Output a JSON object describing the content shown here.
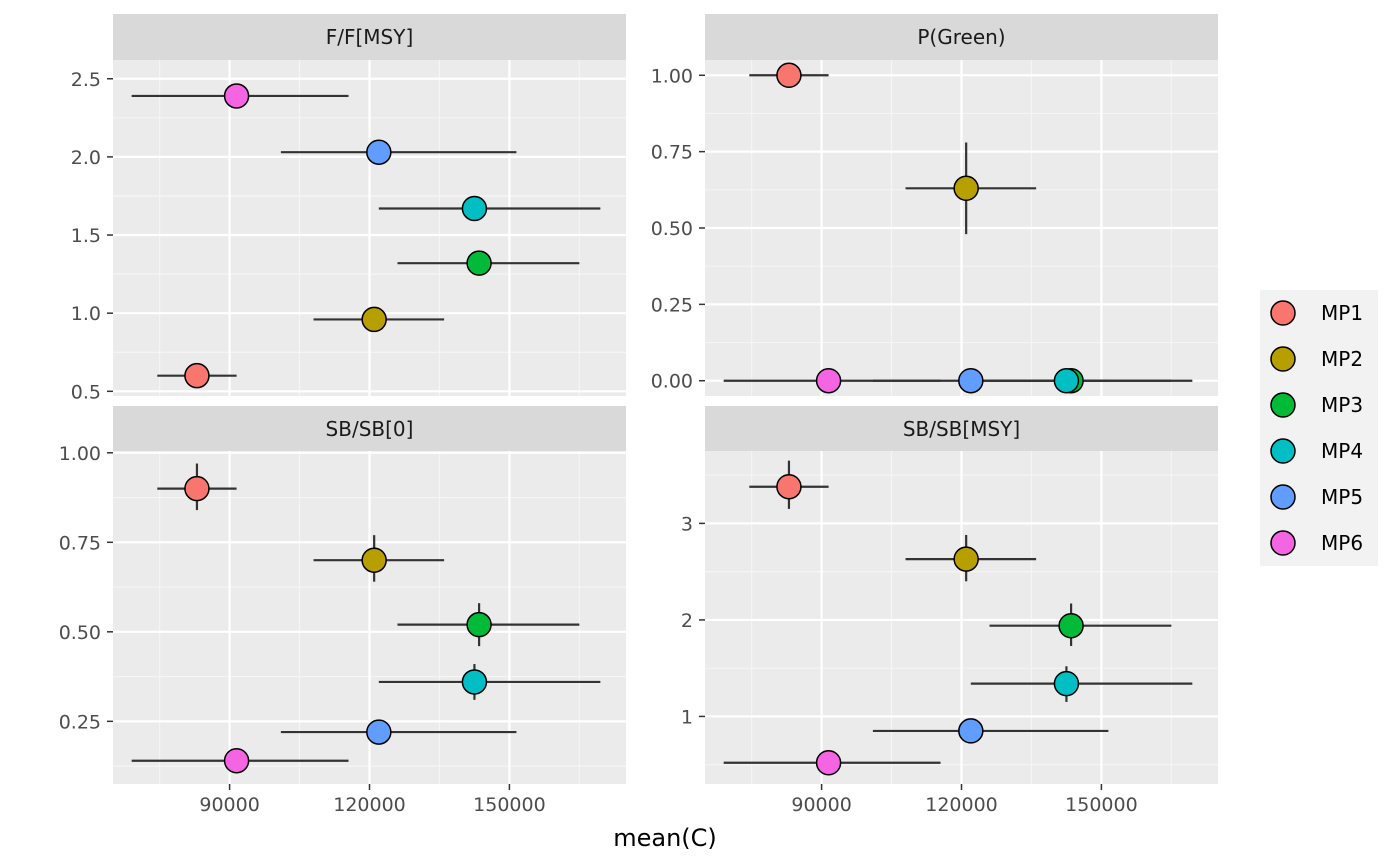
{
  "chart_data": {
    "type": "scatter",
    "layout": "facet-grid-2x2",
    "xlabel": "mean(C)",
    "ylabel": "",
    "x_ticks": [
      90000,
      120000,
      150000
    ],
    "xlim": [
      65000,
      175000
    ],
    "legend": {
      "placement": "right",
      "entries": [
        {
          "name": "MP1",
          "color": "#F8766D"
        },
        {
          "name": "MP2",
          "color": "#B79F00"
        },
        {
          "name": "MP3",
          "color": "#00BA38"
        },
        {
          "name": "MP4",
          "color": "#00BFC4"
        },
        {
          "name": "MP5",
          "color": "#619CFF"
        },
        {
          "name": "MP6",
          "color": "#F564E3"
        }
      ]
    },
    "panels": [
      {
        "title": "F/F[MSY]",
        "ylim": [
          0.47,
          2.62
        ],
        "y_ticks": [
          "0.5",
          "1.0",
          "1.5",
          "2.0",
          "2.5"
        ],
        "y_tick_values": [
          0.5,
          1.0,
          1.5,
          2.0,
          2.5
        ],
        "points": [
          {
            "mp": "MP1",
            "x": 83000,
            "y": 0.6,
            "xmin": 74500,
            "xmax": 91500,
            "ymin": 0.6,
            "ymax": 0.6
          },
          {
            "mp": "MP2",
            "x": 121000,
            "y": 0.96,
            "xmin": 108000,
            "xmax": 136000,
            "ymin": 0.96,
            "ymax": 0.96
          },
          {
            "mp": "MP3",
            "x": 143500,
            "y": 1.32,
            "xmin": 126000,
            "xmax": 165000,
            "ymin": 1.32,
            "ymax": 1.32
          },
          {
            "mp": "MP4",
            "x": 142500,
            "y": 1.67,
            "xmin": 122000,
            "xmax": 169500,
            "ymin": 1.67,
            "ymax": 1.67
          },
          {
            "mp": "MP5",
            "x": 122000,
            "y": 2.03,
            "xmin": 101000,
            "xmax": 151500,
            "ymin": 2.03,
            "ymax": 2.03
          },
          {
            "mp": "MP6",
            "x": 91500,
            "y": 2.39,
            "xmin": 69000,
            "xmax": 115500,
            "ymin": 2.39,
            "ymax": 2.39
          }
        ]
      },
      {
        "title": "P(Green)",
        "ylim": [
          -0.05,
          1.05
        ],
        "y_ticks": [
          "0.00",
          "0.25",
          "0.50",
          "0.75",
          "1.00"
        ],
        "y_tick_values": [
          0,
          0.25,
          0.5,
          0.75,
          1.0
        ],
        "points": [
          {
            "mp": "MP1",
            "x": 83000,
            "y": 1.0,
            "xmin": 74500,
            "xmax": 91500,
            "ymin": 1.0,
            "ymax": 1.0
          },
          {
            "mp": "MP2",
            "x": 121000,
            "y": 0.63,
            "xmin": 108000,
            "xmax": 136000,
            "ymin": 0.48,
            "ymax": 0.78
          },
          {
            "mp": "MP3",
            "x": 143500,
            "y": 0.0,
            "xmin": 126000,
            "xmax": 165000,
            "ymin": 0.0,
            "ymax": 0.0
          },
          {
            "mp": "MP4",
            "x": 142500,
            "y": 0.0,
            "xmin": 122000,
            "xmax": 169500,
            "ymin": 0.0,
            "ymax": 0.0
          },
          {
            "mp": "MP5",
            "x": 122000,
            "y": 0.0,
            "xmin": 101000,
            "xmax": 151500,
            "ymin": 0.0,
            "ymax": 0.0
          },
          {
            "mp": "MP6",
            "x": 91500,
            "y": 0.0,
            "xmin": 69000,
            "xmax": 115500,
            "ymin": 0.0,
            "ymax": 0.0
          }
        ]
      },
      {
        "title": "SB/SB[0]",
        "ylim": [
          0.075,
          1.005
        ],
        "y_ticks": [
          "0.25",
          "0.50",
          "0.75",
          "1.00"
        ],
        "y_tick_values": [
          0.25,
          0.5,
          0.75,
          1.0
        ],
        "points": [
          {
            "mp": "MP1",
            "x": 83000,
            "y": 0.9,
            "xmin": 74500,
            "xmax": 91500,
            "ymin": 0.84,
            "ymax": 0.97
          },
          {
            "mp": "MP2",
            "x": 121000,
            "y": 0.7,
            "xmin": 108000,
            "xmax": 136000,
            "ymin": 0.64,
            "ymax": 0.77
          },
          {
            "mp": "MP3",
            "x": 143500,
            "y": 0.52,
            "xmin": 126000,
            "xmax": 165000,
            "ymin": 0.46,
            "ymax": 0.58
          },
          {
            "mp": "MP4",
            "x": 142500,
            "y": 0.36,
            "xmin": 122000,
            "xmax": 169500,
            "ymin": 0.31,
            "ymax": 0.41
          },
          {
            "mp": "MP5",
            "x": 122000,
            "y": 0.22,
            "xmin": 101000,
            "xmax": 151500,
            "ymin": 0.2,
            "ymax": 0.24
          },
          {
            "mp": "MP6",
            "x": 91500,
            "y": 0.14,
            "xmin": 69000,
            "xmax": 115500,
            "ymin": 0.14,
            "ymax": 0.14
          }
        ]
      },
      {
        "title": "SB/SB[MSY]",
        "ylim": [
          0.3,
          3.75
        ],
        "y_ticks": [
          "1",
          "2",
          "3"
        ],
        "y_tick_values": [
          1,
          2,
          3
        ],
        "points": [
          {
            "mp": "MP1",
            "x": 83000,
            "y": 3.38,
            "xmin": 74500,
            "xmax": 91500,
            "ymin": 3.15,
            "ymax": 3.65
          },
          {
            "mp": "MP2",
            "x": 121000,
            "y": 2.63,
            "xmin": 108000,
            "xmax": 136000,
            "ymin": 2.4,
            "ymax": 2.88
          },
          {
            "mp": "MP3",
            "x": 143500,
            "y": 1.94,
            "xmin": 126000,
            "xmax": 165000,
            "ymin": 1.73,
            "ymax": 2.17
          },
          {
            "mp": "MP4",
            "x": 142500,
            "y": 1.34,
            "xmin": 122000,
            "xmax": 169500,
            "ymin": 1.15,
            "ymax": 1.52
          },
          {
            "mp": "MP5",
            "x": 122000,
            "y": 0.85,
            "xmin": 101000,
            "xmax": 151500,
            "ymin": 0.78,
            "ymax": 0.93
          },
          {
            "mp": "MP6",
            "x": 91500,
            "y": 0.52,
            "xmin": 69000,
            "xmax": 115500,
            "ymin": 0.52,
            "ymax": 0.52
          }
        ]
      }
    ]
  }
}
